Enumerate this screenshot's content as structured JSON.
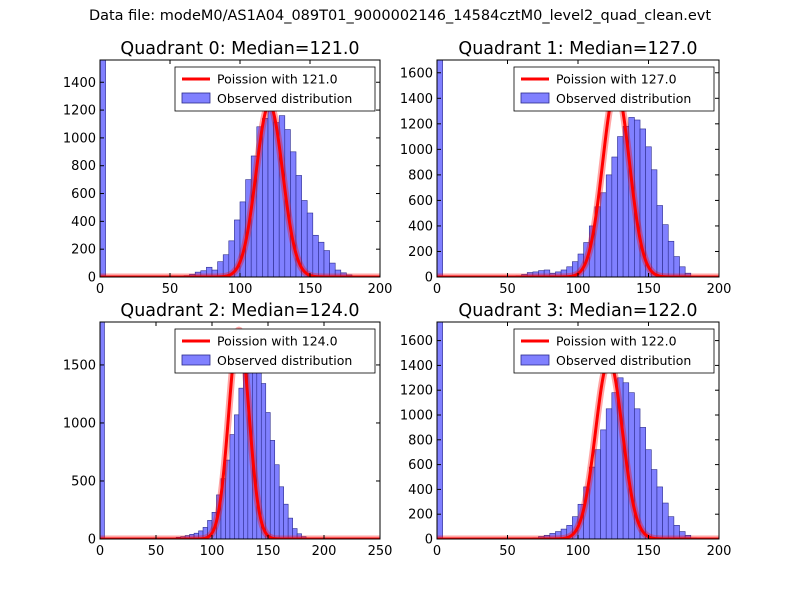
{
  "page_title": "Data file: modeM0/AS1A04_089T01_9000002146_14584cztM0_level2_quad_clean.evt",
  "colors": {
    "hist_fill": "#8080ff",
    "hist_edge": "#2a2a8c",
    "poisson": "#ff0000",
    "axis": "#000000",
    "legend_edge": "#000000",
    "background": "#ffffff"
  },
  "legend": {
    "observed_label": "Observed distribution"
  },
  "chart_data": [
    {
      "type": "bar",
      "title": "Quadrant 0: Median=121.0",
      "poisson_label": "Poission with 121.0",
      "median": 121.0,
      "xlim": [
        0,
        200
      ],
      "ylim": [
        0,
        1560
      ],
      "xticks": [
        0,
        50,
        100,
        150,
        200
      ],
      "yticks": [
        0,
        200,
        400,
        600,
        800,
        1000,
        1200,
        1400
      ],
      "bin_width": 4,
      "bin_starts": [
        0,
        60,
        64,
        68,
        72,
        76,
        80,
        84,
        88,
        92,
        96,
        100,
        104,
        108,
        112,
        116,
        120,
        124,
        128,
        132,
        136,
        140,
        144,
        148,
        152,
        156,
        160,
        164,
        168,
        172,
        176,
        180
      ],
      "counts": [
        1560,
        10,
        20,
        35,
        45,
        70,
        50,
        110,
        160,
        260,
        410,
        540,
        700,
        870,
        1080,
        1140,
        1270,
        1110,
        1160,
        1060,
        900,
        730,
        550,
        460,
        300,
        250,
        190,
        100,
        50,
        30,
        15,
        5
      ],
      "poisson_peak": 1240,
      "poisson_sigma": 9.5
    },
    {
      "type": "bar",
      "title": "Quadrant 1: Median=127.0",
      "poisson_label": "Poission with 127.0",
      "median": 127.0,
      "xlim": [
        0,
        200
      ],
      "ylim": [
        0,
        1700
      ],
      "xticks": [
        0,
        50,
        100,
        150,
        200
      ],
      "yticks": [
        0,
        200,
        400,
        600,
        800,
        1000,
        1200,
        1400,
        1600
      ],
      "bin_width": 4,
      "bin_starts": [
        0,
        56,
        60,
        64,
        68,
        72,
        76,
        80,
        84,
        88,
        92,
        96,
        100,
        104,
        108,
        112,
        116,
        120,
        124,
        128,
        132,
        136,
        140,
        144,
        148,
        152,
        156,
        160,
        164,
        168,
        172,
        176
      ],
      "counts": [
        1700,
        10,
        20,
        35,
        40,
        50,
        55,
        30,
        40,
        55,
        80,
        120,
        180,
        270,
        400,
        550,
        660,
        800,
        940,
        1100,
        1180,
        1250,
        1230,
        1160,
        1020,
        840,
        560,
        410,
        280,
        160,
        80,
        30
      ],
      "poisson_peak": 1480,
      "poisson_sigma": 9.5
    },
    {
      "type": "bar",
      "title": "Quadrant 2: Median=124.0",
      "poisson_label": "Poission with 124.0",
      "median": 124.0,
      "xlim": [
        0,
        250
      ],
      "ylim": [
        0,
        1870
      ],
      "xticks": [
        0,
        50,
        100,
        150,
        200,
        250
      ],
      "yticks": [
        0,
        500,
        1000,
        1500
      ],
      "bin_width": 4,
      "bin_starts": [
        0,
        64,
        68,
        72,
        76,
        80,
        84,
        88,
        92,
        96,
        100,
        104,
        108,
        112,
        116,
        120,
        124,
        128,
        132,
        136,
        140,
        144,
        148,
        152,
        156,
        160,
        164,
        168,
        172,
        176,
        180,
        184,
        196
      ],
      "counts": [
        1870,
        10,
        15,
        20,
        30,
        40,
        50,
        70,
        100,
        160,
        230,
        380,
        520,
        680,
        900,
        1070,
        1300,
        1500,
        1640,
        1700,
        1520,
        1340,
        1090,
        850,
        640,
        450,
        300,
        180,
        90,
        45,
        20,
        10,
        5
      ],
      "poisson_peak": 1800,
      "poisson_sigma": 9.0
    },
    {
      "type": "bar",
      "title": "Quadrant 3: Median=122.0",
      "poisson_label": "Poission with 122.0",
      "median": 122.0,
      "xlim": [
        0,
        200
      ],
      "ylim": [
        0,
        1750
      ],
      "xticks": [
        0,
        50,
        100,
        150,
        200
      ],
      "yticks": [
        0,
        200,
        400,
        600,
        800,
        1000,
        1200,
        1400,
        1600
      ],
      "bin_width": 4,
      "bin_starts": [
        0,
        68,
        72,
        76,
        80,
        84,
        88,
        92,
        96,
        100,
        104,
        108,
        112,
        116,
        120,
        124,
        128,
        132,
        136,
        140,
        144,
        148,
        152,
        156,
        160,
        164,
        168,
        172,
        176,
        180
      ],
      "counts": [
        1750,
        10,
        20,
        30,
        45,
        60,
        80,
        110,
        180,
        280,
        420,
        580,
        720,
        880,
        1050,
        1180,
        1300,
        1260,
        1180,
        1050,
        900,
        720,
        560,
        420,
        290,
        180,
        110,
        60,
        30,
        10
      ],
      "poisson_peak": 1440,
      "poisson_sigma": 9.5
    }
  ]
}
